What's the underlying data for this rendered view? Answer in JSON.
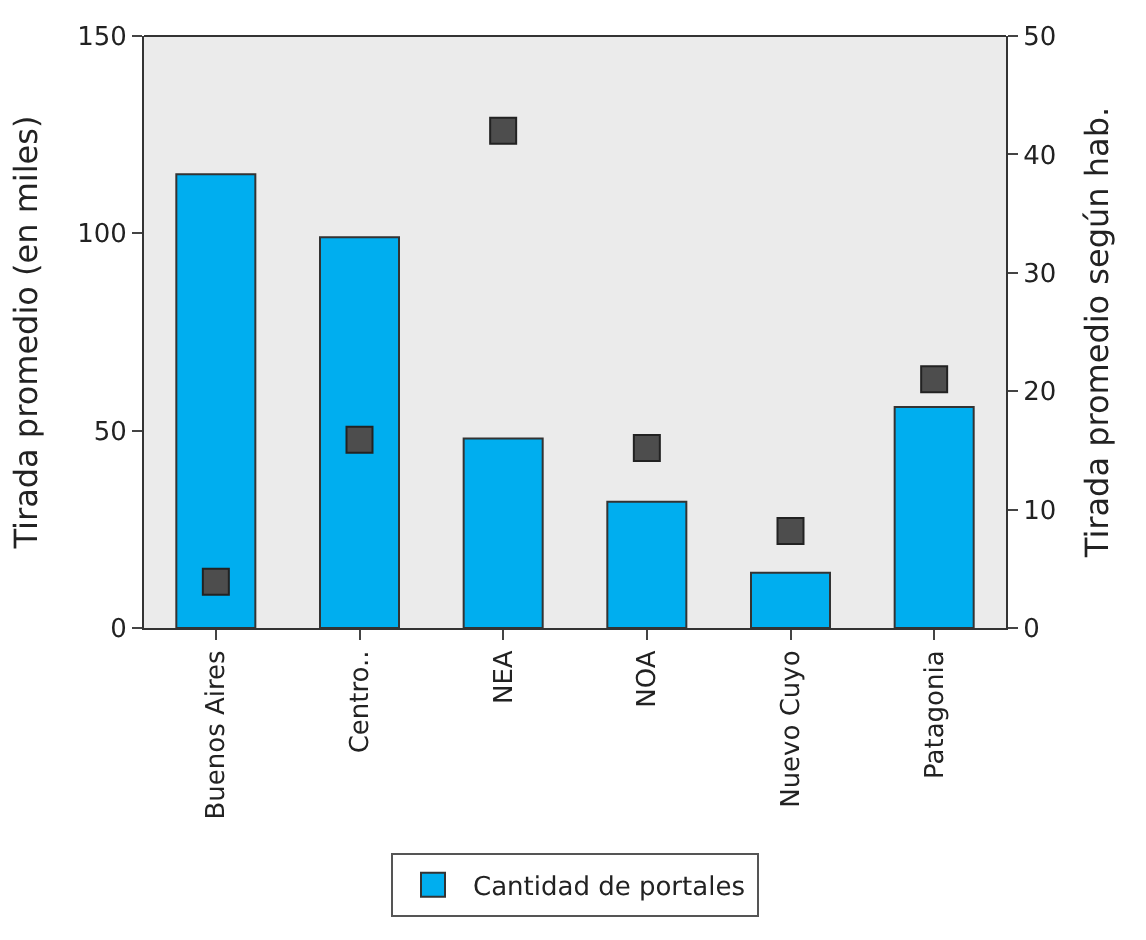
{
  "chart_data": {
    "type": "bar",
    "xlabel": null,
    "ylabel": "Tirada promedio (en miles)",
    "y2label": "Tirada promedio según hab.",
    "categories": [
      "Buenos Aires",
      "Centro..",
      "NEA",
      "NOA",
      "Nuevo Cuyo",
      "Patagonia"
    ],
    "series": [
      {
        "name": "Cantidad de portales",
        "color": "#00aeef",
        "values": [
          115,
          99,
          48,
          32,
          14,
          56
        ]
      },
      {
        "type": "scatter",
        "axis": "y2",
        "color": "#4d4d4d",
        "marker": "square",
        "values": [
          3.9,
          15.9,
          42,
          15.2,
          8.2,
          21
        ]
      }
    ],
    "ylim": [
      0,
      150
    ],
    "yticks": [
      0,
      50,
      100,
      150
    ],
    "y2lim": [
      0,
      50
    ],
    "y2ticks": [
      0,
      10,
      20,
      30,
      40,
      50
    ],
    "grid": false,
    "legend": "bottom"
  }
}
